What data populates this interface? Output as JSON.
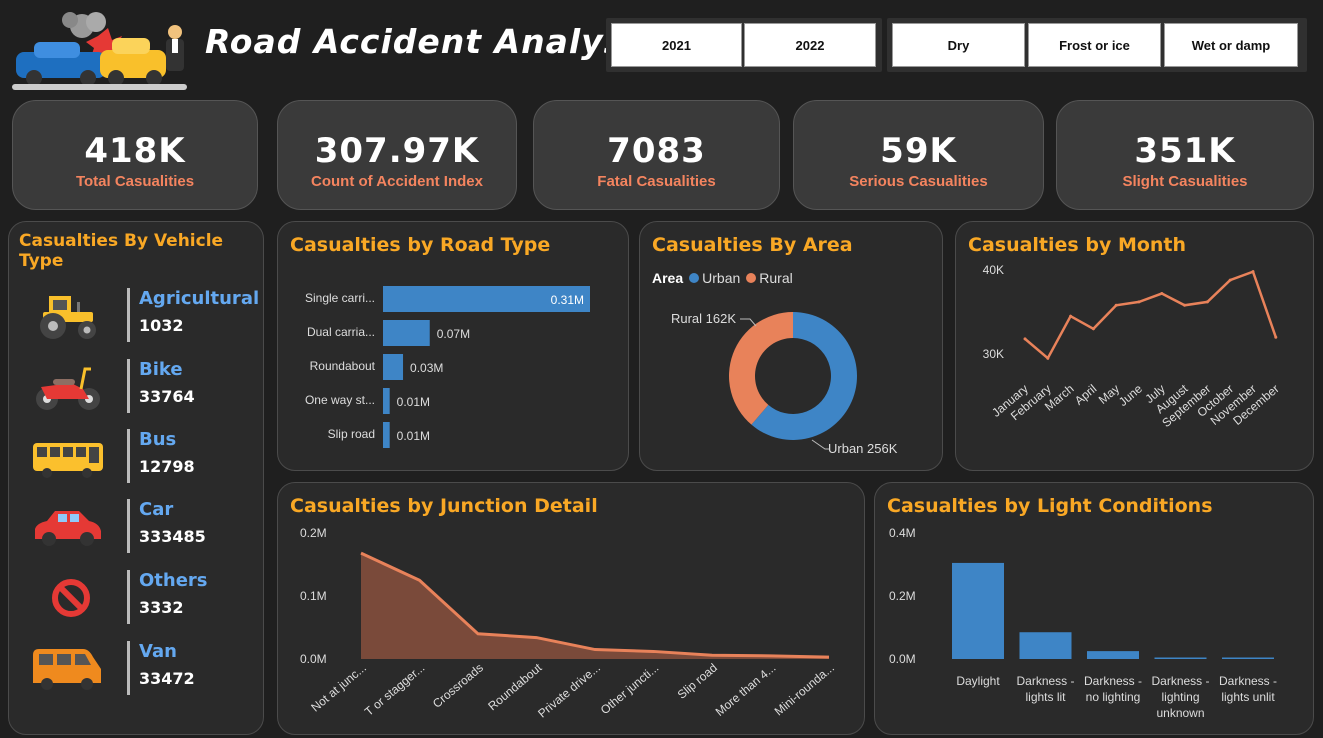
{
  "header": {
    "title": "Road Accident Analysis"
  },
  "filters": {
    "years": [
      "2021",
      "2022"
    ],
    "surfaces": [
      "Dry",
      "Frost or ice",
      "Wet or damp"
    ]
  },
  "kpis": [
    {
      "value": "418K",
      "label": "Total Casualities"
    },
    {
      "value": "307.97K",
      "label": "Count of Accident Index"
    },
    {
      "value": "7083",
      "label": "Fatal Casualities"
    },
    {
      "value": "59K",
      "label": "Serious Casualities"
    },
    {
      "value": "351K",
      "label": "Slight Casualities"
    }
  ],
  "vehicle_panel": {
    "title": "Casualties By Vehicle Type",
    "items": [
      {
        "name": "Agricultural",
        "value": "1032",
        "icon": "tractor-icon"
      },
      {
        "name": "Bike",
        "value": "33764",
        "icon": "motorbike-icon"
      },
      {
        "name": "Bus",
        "value": "12798",
        "icon": "bus-icon"
      },
      {
        "name": "Car",
        "value": "333485",
        "icon": "car-icon"
      },
      {
        "name": "Others",
        "value": "3332",
        "icon": "prohibited-icon"
      },
      {
        "name": "Van",
        "value": "33472",
        "icon": "van-icon"
      }
    ]
  },
  "colors": {
    "accent": "#f9a825",
    "blue": "#3e85c6",
    "orange": "#e8825a",
    "kpi_label": "#f4845f"
  },
  "chart_data": [
    {
      "id": "road",
      "type": "bar",
      "orientation": "horizontal",
      "title": "Casualties by Road Type",
      "categories": [
        "Single carri...",
        "Dual carria...",
        "Roundabout",
        "One way st...",
        "Slip road"
      ],
      "values": [
        0.31,
        0.07,
        0.03,
        0.01,
        0.01
      ],
      "value_labels": [
        "0.31M",
        "0.07M",
        "0.03M",
        "0.01M",
        "0.01M"
      ],
      "unit": "M"
    },
    {
      "id": "area",
      "type": "pie",
      "title": "Casualties By Area",
      "legend_title": "Area",
      "slices": [
        {
          "name": "Urban",
          "value": 256,
          "label": "Urban 256K",
          "color": "#3e85c6"
        },
        {
          "name": "Rural",
          "value": 162,
          "label": "Rural 162K",
          "color": "#e8825a"
        }
      ]
    },
    {
      "id": "month",
      "type": "line",
      "title": "Casualties by Month",
      "categories": [
        "January",
        "February",
        "March",
        "April",
        "May",
        "June",
        "July",
        "August",
        "September",
        "October",
        "November",
        "December"
      ],
      "values": [
        31800,
        29500,
        34500,
        33000,
        35800,
        36200,
        37200,
        35800,
        36200,
        38800,
        39800,
        32000
      ],
      "yticks": [
        "30K",
        "40K"
      ],
      "ylim": [
        30000,
        40000
      ]
    },
    {
      "id": "junction",
      "type": "area",
      "title": "Casualties by Junction Detail",
      "categories": [
        "Not at junc...",
        "T or stagger...",
        "Crossroads",
        "Roundabout",
        "Private drive...",
        "Other juncti...",
        "Slip road",
        "More than 4...",
        "Mini-rounda..."
      ],
      "values": [
        0.168,
        0.125,
        0.04,
        0.034,
        0.015,
        0.012,
        0.006,
        0.005,
        0.003
      ],
      "yticks": [
        "0.0M",
        "0.1M",
        "0.2M"
      ],
      "ylim": [
        0,
        0.2
      ]
    },
    {
      "id": "light",
      "type": "bar",
      "title": "Casualties by Light Conditions",
      "categories": [
        [
          "Daylight"
        ],
        [
          "Darkness -",
          "lights lit"
        ],
        [
          "Darkness -",
          "no lighting"
        ],
        [
          "Darkness -",
          "lighting",
          "unknown"
        ],
        [
          "Darkness -",
          "lights unlit"
        ]
      ],
      "values": [
        0.305,
        0.085,
        0.025,
        0.004,
        0.002
      ],
      "yticks": [
        "0.0M",
        "0.2M",
        "0.4M"
      ],
      "ylim": [
        0,
        0.4
      ]
    }
  ]
}
